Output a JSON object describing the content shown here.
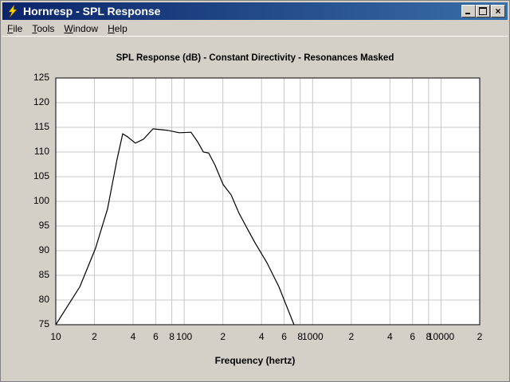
{
  "window": {
    "title": "Hornresp - SPL Response"
  },
  "menu": [
    "File",
    "Tools",
    "Window",
    "Help"
  ],
  "chart_data": {
    "type": "line",
    "title": "SPL Response (dB) - Constant Directivity - Resonances Masked",
    "x_label": "Frequency (hertz)",
    "x_scale": "log",
    "grid": true,
    "color": "#000000",
    "x": [
      10,
      15.4,
      20.4,
      25.3,
      30.0,
      33.2,
      36.1,
      41.7,
      48.2,
      57.2,
      73.8,
      91.5,
      113,
      127,
      141,
      155,
      174,
      201,
      232,
      267,
      317,
      356,
      440,
      546,
      716
    ],
    "values": [
      75,
      82.7,
      90.5,
      98.5,
      108.5,
      113.7,
      113.1,
      111.8,
      112.6,
      114.7,
      114.4,
      113.9,
      114.0,
      112.1,
      110,
      109.8,
      107.3,
      103.4,
      101.3,
      97.6,
      94.0,
      91.6,
      87.6,
      82.7,
      75
    ],
    "xlim": [
      10,
      20000
    ],
    "ylim": [
      75,
      125
    ],
    "xticks": [
      10,
      {
        "value": 20,
        "label": "2"
      },
      {
        "value": 40,
        "label": "4"
      },
      {
        "value": 60,
        "label": "6"
      },
      {
        "value": 80,
        "label": "8"
      },
      100,
      {
        "value": 200,
        "label": "2"
      },
      {
        "value": 400,
        "label": "4"
      },
      {
        "value": 600,
        "label": "6"
      },
      {
        "value": 800,
        "label": "8"
      },
      1000,
      {
        "value": 2000,
        "label": "2"
      },
      {
        "value": 4000,
        "label": "4"
      },
      {
        "value": 6000,
        "label": "6"
      },
      {
        "value": 8000,
        "label": "8"
      },
      10000,
      {
        "value": 20000,
        "label": "2"
      }
    ],
    "yticks": [
      75,
      80,
      85,
      90,
      95,
      100,
      105,
      110,
      115,
      120,
      125
    ]
  }
}
